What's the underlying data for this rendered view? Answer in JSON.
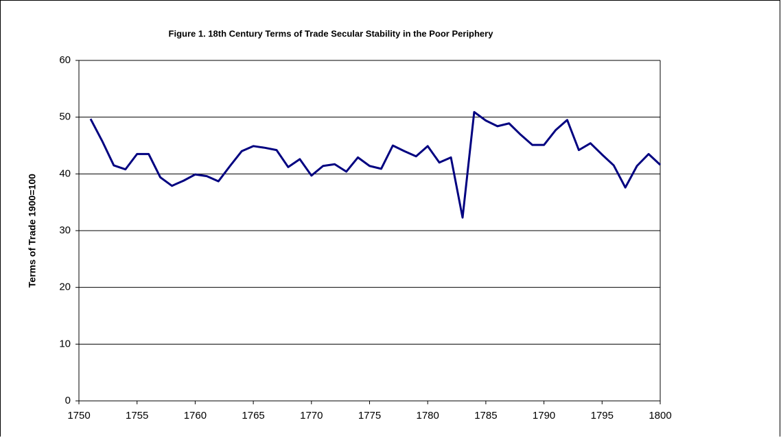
{
  "chart_data": {
    "type": "line",
    "title": "Figure 1. 18th Century Terms of Trade Secular Stability in the Poor Periphery",
    "y_label": "Terms of Trade 1900=100",
    "x": [
      1751,
      1752,
      1753,
      1754,
      1755,
      1756,
      1757,
      1758,
      1759,
      1760,
      1761,
      1762,
      1763,
      1764,
      1765,
      1766,
      1767,
      1768,
      1769,
      1770,
      1771,
      1772,
      1773,
      1774,
      1775,
      1776,
      1777,
      1778,
      1779,
      1780,
      1781,
      1782,
      1783,
      1784,
      1785,
      1786,
      1787,
      1788,
      1789,
      1790,
      1791,
      1792,
      1793,
      1794,
      1795,
      1796,
      1797,
      1798,
      1799,
      1800
    ],
    "values": [
      49.7,
      45.8,
      41.5,
      40.8,
      43.5,
      43.5,
      39.4,
      37.9,
      38.8,
      39.9,
      39.6,
      38.7,
      41.4,
      44.0,
      44.9,
      44.6,
      44.2,
      41.2,
      42.6,
      39.7,
      41.4,
      41.7,
      40.4,
      42.9,
      41.4,
      40.9,
      45.0,
      44.0,
      43.1,
      44.9,
      42.0,
      42.9,
      32.3,
      50.9,
      49.4,
      48.4,
      48.9,
      46.9,
      45.1,
      45.1,
      47.7,
      49.5,
      44.2,
      45.4,
      43.4,
      41.5,
      37.6,
      41.4,
      43.5,
      41.6
    ],
    "color": "#000080",
    "xlim": [
      1750,
      1800
    ],
    "xticks": [
      1750,
      1755,
      1760,
      1765,
      1770,
      1775,
      1780,
      1785,
      1790,
      1795,
      1800
    ],
    "ylim": [
      0,
      60
    ],
    "yticks": [
      0,
      10,
      20,
      30,
      40,
      50,
      60
    ],
    "grid": true
  }
}
